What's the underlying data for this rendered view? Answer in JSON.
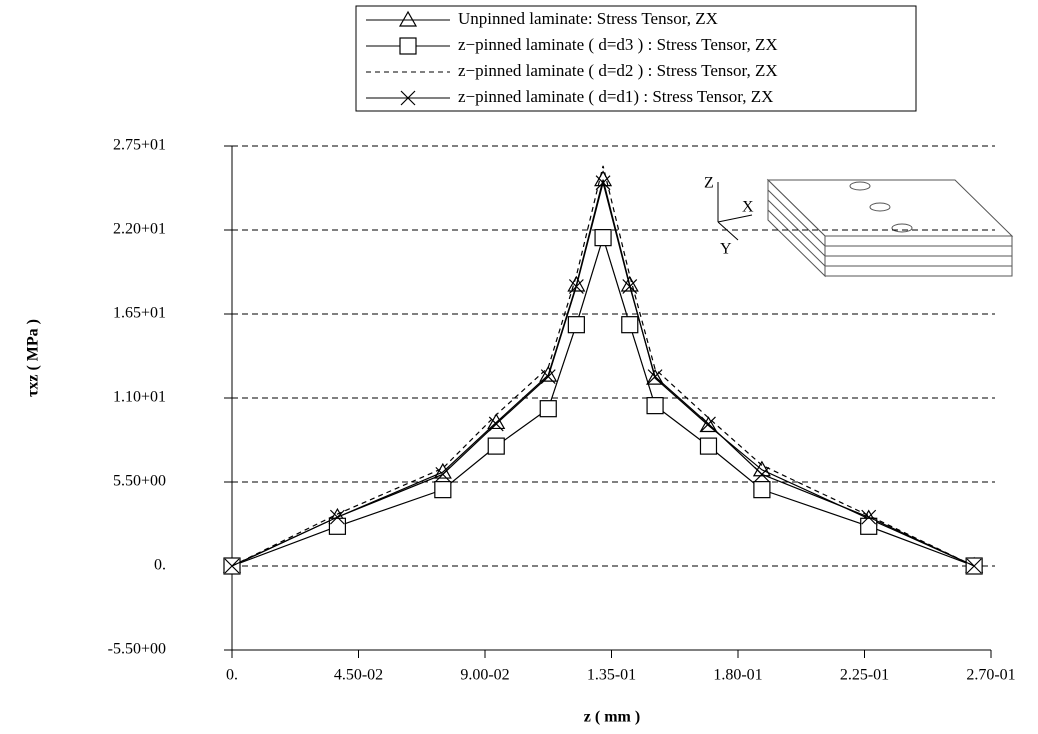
{
  "chart_data": {
    "type": "line",
    "x_label": "z ( mm )",
    "y_label": "τxz ( MPa )",
    "annotations": [
      "Z",
      "X",
      "Y"
    ],
    "xlim": [
      0,
      0.27
    ],
    "ylim": [
      -5.5,
      27.5
    ],
    "xticks": [
      {
        "value": 0,
        "label": "0."
      },
      {
        "value": 0.045,
        "label": "4.50-02"
      },
      {
        "value": 0.09,
        "label": "9.00-02"
      },
      {
        "value": 0.135,
        "label": "1.35-01"
      },
      {
        "value": 0.18,
        "label": "1.80-01"
      },
      {
        "value": 0.225,
        "label": "2.25-01"
      },
      {
        "value": 0.27,
        "label": "2.70-01"
      }
    ],
    "yticks": [
      {
        "value": -5.5,
        "label": "-5.50+00"
      },
      {
        "value": 0,
        "label": "0."
      },
      {
        "value": 5.5,
        "label": "5.50+00"
      },
      {
        "value": 11,
        "label": "1.10+01"
      },
      {
        "value": 16.5,
        "label": "1.65+01"
      },
      {
        "value": 22,
        "label": "2.20+01"
      },
      {
        "value": 27.5,
        "label": "2.75+01"
      }
    ],
    "grid": true,
    "x": [
      0,
      0.0375,
      0.075,
      0.094,
      0.1125,
      0.1225,
      0.132,
      0.1415,
      0.1505,
      0.1695,
      0.1885,
      0.2265,
      0.264
    ],
    "series": [
      {
        "name": "Unpinned laminate: Stress Tensor, ZX",
        "color": "#000000",
        "marker": "triangle",
        "dash": false,
        "values": [
          0,
          3.2,
          6.15,
          9.4,
          12.5,
          18.4,
          25.3,
          18.4,
          12.3,
          9.2,
          6.3,
          3.1,
          0
        ]
      },
      {
        "name": "z−pinned laminate ( d=d3 ) : Stress Tensor, ZX",
        "color": "#000000",
        "marker": "square",
        "dash": false,
        "values": [
          0,
          2.6,
          5.0,
          7.85,
          10.3,
          15.8,
          21.5,
          15.8,
          10.5,
          7.85,
          5.0,
          2.6,
          0
        ]
      },
      {
        "name": "z−pinned laminate ( d=d2 ) : Stress Tensor, ZX",
        "color": "#000000",
        "marker": "none",
        "dash": true,
        "values": [
          0,
          3.4,
          6.4,
          9.9,
          13.0,
          19.0,
          26.2,
          19.0,
          12.9,
          9.7,
          6.6,
          3.3,
          0
        ]
      },
      {
        "name": "z−pinned laminate ( d=d1) : Stress Tensor, ZX",
        "color": "#000000",
        "marker": "cross",
        "dash": false,
        "values": [
          0,
          3.2,
          6.0,
          9.3,
          12.4,
          18.3,
          25.1,
          18.3,
          12.4,
          9.3,
          6.0,
          3.2,
          0
        ]
      }
    ]
  }
}
